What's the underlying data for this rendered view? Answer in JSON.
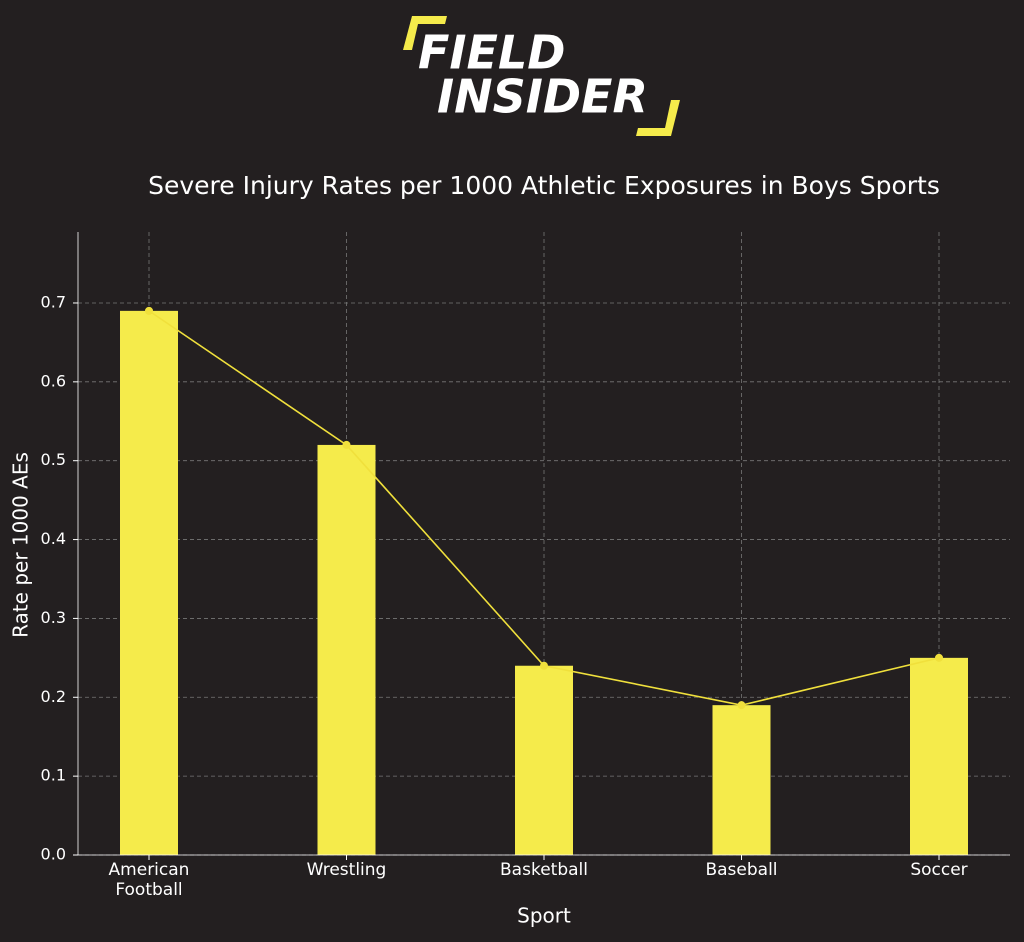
{
  "logo": {
    "line1": "FIELD",
    "line2": "INSIDER"
  },
  "chart_data": {
    "type": "bar",
    "title": "Severe Injury Rates per 1000 Athletic Exposures in Boys Sports",
    "x_label": "Sport",
    "y_label": "Rate per 1000 AEs",
    "categories": [
      "American\nFootball",
      "Wrestling",
      "Basketball",
      "Baseball",
      "Soccer"
    ],
    "values": [
      0.69,
      0.52,
      0.24,
      0.19,
      0.25
    ],
    "color": "#f5eb4b",
    "line_color": "#f0e03c",
    "line_overlay": true,
    "ylim": [
      0,
      0.79
    ],
    "yticks": [
      {
        "value": 0,
        "label": "0.0"
      },
      0.1,
      0.2,
      0.3,
      0.4,
      0.5,
      0.6,
      0.7
    ],
    "grid": true
  }
}
